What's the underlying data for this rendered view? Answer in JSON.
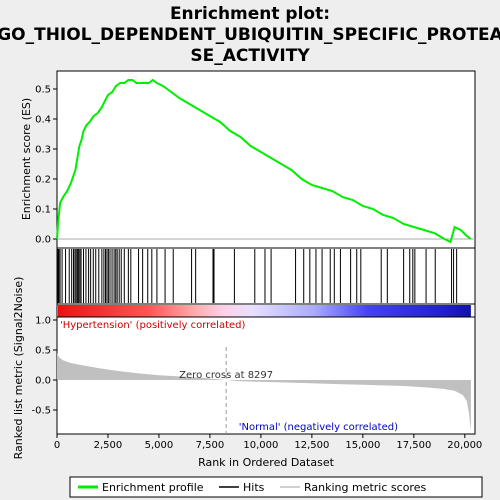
{
  "title_line1": "Enrichment plot:",
  "title_line2": "GO_THIOL_DEPENDENT_UBIQUITIN_SPECIFIC_PROTEA",
  "title_line3": "SE_ACTIVITY",
  "chart_data": {
    "type": "line",
    "xlabel": "Rank in Ordered Dataset",
    "xlim": [
      0,
      20500
    ],
    "x_ticks": [
      0,
      2500,
      5000,
      7500,
      10000,
      12500,
      15000,
      17500,
      20000
    ],
    "x_tick_labels": [
      "0",
      "2,500",
      "5,000",
      "7,500",
      "10,000",
      "12,500",
      "15,000",
      "17,500",
      "20,000"
    ],
    "es_panel": {
      "ylabel": "Enrichment score (ES)",
      "ylim": [
        -0.03,
        0.56
      ],
      "y_ticks": [
        0.0,
        0.1,
        0.2,
        0.3,
        0.4,
        0.5
      ],
      "y_tick_labels": [
        "0.0",
        "0.1",
        "0.2",
        "0.3",
        "0.4",
        "0.5"
      ],
      "series_name": "Enrichment profile",
      "color": "#00ee00",
      "x": [
        0,
        60,
        150,
        300,
        500,
        700,
        900,
        1000,
        1100,
        1200,
        1300,
        1450,
        1600,
        1800,
        2000,
        2200,
        2350,
        2500,
        2700,
        2900,
        3100,
        3300,
        3500,
        3700,
        3900,
        4100,
        4300,
        4500,
        4700,
        4900,
        5200,
        5600,
        6000,
        6500,
        7000,
        7500,
        8000,
        8500,
        9000,
        9500,
        10000,
        10500,
        11000,
        11500,
        12000,
        12500,
        13000,
        13500,
        14000,
        14500,
        15000,
        15500,
        16000,
        16500,
        17000,
        17500,
        18000,
        18500,
        19000,
        19300,
        19500,
        19800,
        20100,
        20300
      ],
      "y": [
        0.0,
        0.06,
        0.12,
        0.14,
        0.16,
        0.19,
        0.23,
        0.27,
        0.31,
        0.33,
        0.36,
        0.38,
        0.39,
        0.41,
        0.42,
        0.44,
        0.46,
        0.48,
        0.49,
        0.51,
        0.52,
        0.52,
        0.53,
        0.53,
        0.52,
        0.52,
        0.52,
        0.52,
        0.53,
        0.52,
        0.51,
        0.49,
        0.47,
        0.45,
        0.43,
        0.41,
        0.39,
        0.36,
        0.34,
        0.31,
        0.29,
        0.27,
        0.25,
        0.23,
        0.2,
        0.18,
        0.17,
        0.16,
        0.14,
        0.13,
        0.11,
        0.1,
        0.08,
        0.07,
        0.05,
        0.04,
        0.03,
        0.02,
        0.0,
        -0.01,
        0.04,
        0.03,
        0.01,
        0.0
      ]
    },
    "hits_panel": {
      "series_name": "Hits",
      "hit_ranks": [
        20,
        60,
        90,
        150,
        250,
        420,
        600,
        720,
        810,
        880,
        940,
        1000,
        1060,
        1120,
        1180,
        1300,
        1420,
        1550,
        1650,
        1780,
        1900,
        2050,
        2200,
        2300,
        2380,
        2450,
        2520,
        2600,
        2700,
        2800,
        2880,
        2950,
        3050,
        3150,
        3300,
        3500,
        3620,
        4000,
        4200,
        4450,
        4650,
        4900,
        5300,
        5700,
        6600,
        6800,
        7650,
        7700,
        8700,
        9700,
        10200,
        10500,
        11700,
        12100,
        12400,
        12700,
        13000,
        13400,
        13600,
        13900,
        14400,
        14700,
        14900,
        15900,
        16200,
        17000,
        17300,
        17450,
        17550,
        18100,
        18550,
        19350,
        19450,
        19600
      ]
    },
    "metric_panel": {
      "ylabel": "Ranked list metric (Signal2Noise)",
      "series_name": "Ranking metric scores",
      "ylim": [
        -0.9,
        1.05
      ],
      "y_ticks": [
        -0.5,
        0.0,
        0.5,
        1.0
      ],
      "y_tick_labels": [
        "-0.5",
        "0.0",
        "0.5",
        "1.0"
      ],
      "x": [
        0,
        100,
        300,
        600,
        1000,
        2000,
        3000,
        4000,
        5000,
        6000,
        7000,
        8297,
        9000,
        10000,
        11000,
        12000,
        13000,
        14000,
        15000,
        16000,
        17000,
        18000,
        19000,
        19500,
        19900,
        20100,
        20200,
        20300
      ],
      "y": [
        0.45,
        0.38,
        0.33,
        0.29,
        0.26,
        0.2,
        0.15,
        0.11,
        0.08,
        0.06,
        0.04,
        0.0,
        -0.02,
        -0.03,
        -0.04,
        -0.05,
        -0.06,
        -0.07,
        -0.08,
        -0.09,
        -0.1,
        -0.12,
        -0.15,
        -0.18,
        -0.25,
        -0.35,
        -0.55,
        -0.85
      ],
      "zero_cross_label": "Zero cross at 8297",
      "zero_cross": 8297,
      "pos_label": "'Hypertension' (positively correlated)",
      "neg_label": "'Normal' (negatively correlated)"
    }
  },
  "legend": {
    "items": [
      {
        "label": "Enrichment profile",
        "color": "#00ee00"
      },
      {
        "label": "Hits",
        "color": "#000000"
      },
      {
        "label": "Ranking metric scores",
        "color": "#c0c0c0"
      }
    ]
  }
}
